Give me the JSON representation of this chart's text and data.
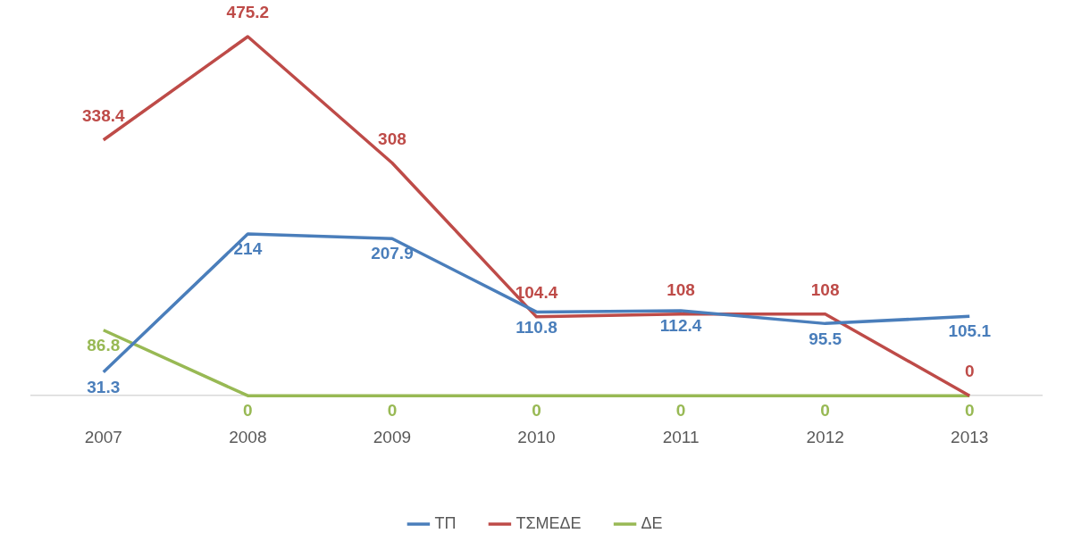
{
  "chart_data": {
    "type": "line",
    "categories": [
      "2007",
      "2008",
      "2009",
      "2010",
      "2011",
      "2012",
      "2013"
    ],
    "series": [
      {
        "name": "ΤΠ",
        "color": "#4a7ebb",
        "values": [
          31.3,
          214,
          207.9,
          110.8,
          112.4,
          95.5,
          105.1
        ]
      },
      {
        "name": "ΤΣΜΕΔΕ",
        "color": "#be4b48",
        "values": [
          338.4,
          475.2,
          308,
          104.4,
          108,
          108,
          0
        ]
      },
      {
        "name": "ΔΕ",
        "color": "#98b954",
        "values": [
          86.8,
          0,
          0,
          0,
          0,
          0,
          0
        ]
      }
    ],
    "data_labels": true,
    "grid": false,
    "legend": "bottom",
    "line_style": "solid",
    "tick_labels": "x"
  }
}
